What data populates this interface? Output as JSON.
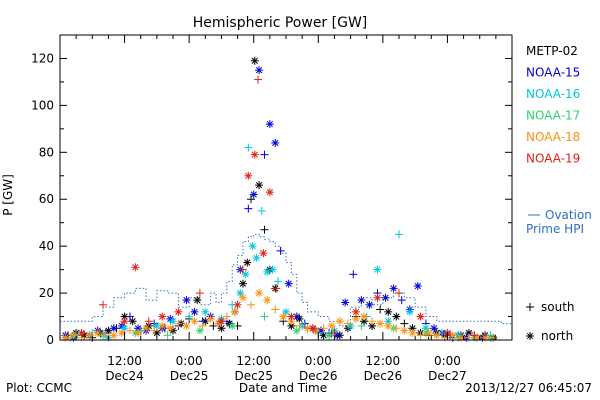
{
  "chart_data": {
    "type": "scatter",
    "title": "Hemispheric Power [GW]",
    "xlabel": "Date and Time",
    "ylabel": "P [GW]",
    "ylim": [
      0,
      130
    ],
    "yticks": [
      0,
      20,
      40,
      60,
      80,
      100,
      120
    ],
    "xlim_hours": [
      -12,
      72
    ],
    "xticks": [
      {
        "hour": 0,
        "time": "12:00",
        "date": "Dec24"
      },
      {
        "hour": 12,
        "time": "0:00",
        "date": "Dec25"
      },
      {
        "hour": 24,
        "time": "12:00",
        "date": "Dec25"
      },
      {
        "hour": 36,
        "time": "0:00",
        "date": "Dec26"
      },
      {
        "hour": 48,
        "time": "12:00",
        "date": "Dec26"
      },
      {
        "hour": 60,
        "time": "0:00",
        "date": "Dec27"
      }
    ],
    "grid": false,
    "legend_position": "right",
    "series": [
      {
        "name": "METP-02",
        "color": "#000000",
        "x": [
          -10.5,
          -9,
          -7.5,
          -6,
          -4.5,
          -3,
          -1.5,
          0,
          1.5,
          3,
          4.5,
          6,
          7.5,
          9,
          10.5,
          12,
          13.5,
          15,
          16.5,
          18,
          19.5,
          21,
          22,
          22.8,
          23.5,
          24.2,
          25,
          26,
          27,
          28,
          29.5,
          31,
          32.5,
          34,
          35.5,
          37,
          38.5,
          40,
          41.5,
          43,
          44.5,
          46,
          47.5,
          49,
          50.5,
          52,
          53.5,
          55,
          56.5,
          58,
          59.5,
          61,
          62.5,
          64,
          65.5,
          67,
          68.5
        ],
        "y": [
          2,
          3,
          2,
          1,
          3,
          4,
          5,
          10,
          8,
          4,
          6,
          3,
          5,
          4,
          7,
          9,
          17,
          8,
          6,
          5,
          7,
          6,
          24,
          33,
          60,
          119,
          66,
          47,
          30,
          22,
          8,
          6,
          9,
          5,
          4,
          2,
          3,
          2,
          5,
          10,
          8,
          6,
          13,
          12,
          10,
          7,
          5,
          3,
          2,
          3,
          2,
          1,
          2,
          3,
          1,
          2,
          1
        ]
      },
      {
        "name": "NOAA-15",
        "color": "#0000d0",
        "x": [
          -11,
          -9.5,
          -8,
          -6.5,
          -5,
          -3.5,
          -2,
          -0.5,
          1,
          2.5,
          4,
          5.5,
          7,
          8.5,
          10,
          11.5,
          13,
          14.5,
          16,
          17.5,
          19,
          20.5,
          21.5,
          23,
          24,
          25,
          26,
          27,
          28,
          29,
          30.5,
          32,
          33.5,
          35,
          36.5,
          38,
          39.5,
          41,
          42.5,
          44,
          45.5,
          47,
          48.5,
          50,
          51.5,
          53,
          54.5,
          56,
          57.5,
          59,
          60.5,
          62,
          63.5,
          65,
          66.5,
          68
        ],
        "y": [
          2,
          1,
          3,
          2,
          4,
          3,
          5,
          6,
          10,
          5,
          4,
          7,
          5,
          9,
          6,
          17,
          12,
          8,
          10,
          7,
          8,
          12,
          30,
          56,
          62,
          115,
          79,
          92,
          84,
          38,
          24,
          10,
          7,
          5,
          4,
          3,
          2,
          16,
          28,
          17,
          15,
          20,
          18,
          22,
          17,
          13,
          23,
          7,
          5,
          3,
          2,
          2,
          1,
          2,
          1,
          1
        ]
      },
      {
        "name": "NOAA-16",
        "color": "#00c8dc",
        "x": [
          -9,
          -6,
          -3,
          0,
          3,
          6,
          9,
          12,
          15,
          18,
          20,
          21.5,
          22.5,
          23,
          23.8,
          24.5,
          25.5,
          26.5,
          27.5,
          28.5,
          30,
          33,
          36,
          39,
          42,
          45,
          47,
          49,
          51,
          53,
          56,
          59,
          62,
          65,
          68
        ],
        "y": [
          2,
          3,
          1,
          5,
          4,
          6,
          8,
          10,
          12,
          9,
          15,
          20,
          28,
          82,
          40,
          35,
          55,
          29,
          30,
          25,
          12,
          6,
          3,
          4,
          6,
          10,
          30,
          8,
          45,
          12,
          5,
          3,
          2,
          1,
          2
        ]
      },
      {
        "name": "NOAA-17",
        "color": "#30d070",
        "x": [
          -10,
          -4,
          2,
          8,
          14,
          20,
          26,
          32,
          38,
          44,
          50,
          56,
          62,
          68
        ],
        "y": [
          1,
          2,
          3,
          2,
          4,
          6,
          10,
          4,
          2,
          6,
          5,
          3,
          1,
          1
        ]
      },
      {
        "name": "NOAA-18",
        "color": "#ff9010",
        "x": [
          -11,
          -9.5,
          -8,
          -6.5,
          -5,
          -3.5,
          -2,
          -0.5,
          1,
          2.5,
          4,
          5.5,
          7,
          8.5,
          10,
          11.5,
          13,
          14.5,
          16,
          17.5,
          19,
          20.5,
          22,
          23.5,
          25,
          26.5,
          28,
          29.5,
          31,
          32.5,
          34,
          35.5,
          37,
          38.5,
          40,
          41.5,
          43,
          44.5,
          46,
          47.5,
          49,
          50.5,
          52,
          53.5,
          55,
          56.5,
          58,
          59.5,
          61,
          62.5,
          64,
          65.5,
          67,
          68.5
        ],
        "y": [
          1,
          2,
          1,
          2,
          3,
          2,
          2,
          3,
          4,
          3,
          5,
          4,
          6,
          5,
          7,
          6,
          8,
          6,
          9,
          7,
          10,
          12,
          18,
          15,
          20,
          17,
          13,
          10,
          8,
          6,
          5,
          4,
          5,
          6,
          8,
          7,
          9,
          10,
          8,
          7,
          6,
          5,
          4,
          3,
          2,
          3,
          2,
          1,
          2,
          1,
          1,
          1,
          1,
          1
        ]
      },
      {
        "name": "NOAA-19",
        "color": "#e02010",
        "x": [
          -8,
          -4,
          0,
          2,
          4.5,
          7,
          10,
          14,
          18,
          21,
          22,
          23,
          24.2,
          24.8,
          25.8,
          27,
          28.2,
          31,
          35,
          39,
          43,
          47,
          51,
          55,
          60,
          65
        ],
        "y": [
          3,
          15,
          8,
          31,
          8,
          10,
          12,
          20,
          8,
          15,
          30,
          70,
          79,
          111,
          37,
          63,
          22,
          10,
          5,
          3,
          12,
          18,
          20,
          10,
          3,
          2
        ]
      }
    ],
    "ovation": {
      "label_line1": "Ovation",
      "label_line2": "Prime HPI",
      "color": "#3070c8",
      "x": [
        -12,
        -8,
        -6,
        -4,
        -2,
        0,
        2,
        4,
        6,
        8,
        10,
        12,
        14,
        16,
        17,
        18,
        19,
        20,
        21,
        22,
        23,
        24,
        25,
        26,
        27,
        28,
        29,
        30,
        31,
        32,
        33,
        34,
        36,
        38,
        40,
        42,
        44,
        46,
        48,
        50,
        52,
        54,
        56,
        58,
        60,
        62,
        64,
        66,
        68,
        70,
        72
      ],
      "y": [
        8,
        8,
        10,
        14,
        18,
        20,
        22,
        17,
        21,
        20,
        14,
        18,
        15,
        20,
        16,
        20,
        25,
        32,
        36,
        42,
        44,
        45,
        44,
        43,
        42,
        40,
        37,
        33,
        28,
        20,
        16,
        12,
        10,
        8,
        6,
        14,
        18,
        15,
        18,
        20,
        18,
        14,
        10,
        8,
        8,
        8,
        8,
        8,
        8,
        7,
        7
      ]
    },
    "markers_legend": [
      {
        "symbol": "+",
        "label": "south"
      },
      {
        "symbol": "*",
        "label": "north"
      }
    ]
  },
  "footer": {
    "left": "Plot: CCMC",
    "right": "2013/12/27 06:45:07"
  }
}
